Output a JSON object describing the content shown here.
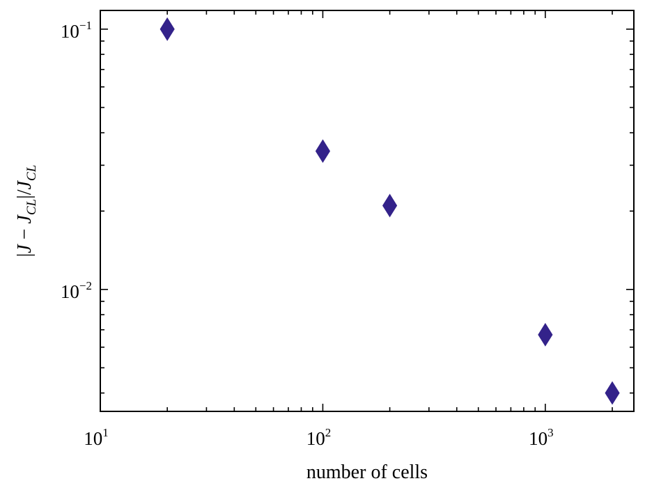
{
  "chart_data": {
    "type": "scatter",
    "title": "",
    "xlabel": "number of cells",
    "ylabel": "|J − J_CL|/J_CL",
    "ylabel_parts": {
      "abs_open": "|",
      "j": "J",
      "minus": " − ",
      "j2": "J",
      "sub1": "CL",
      "abs_close": "|/",
      "j3": "J",
      "sub2": "CL"
    },
    "xscale": "log",
    "yscale": "log",
    "xlim": [
      10,
      2500
    ],
    "ylim": [
      0.0034,
      0.118
    ],
    "grid": false,
    "legend": "none",
    "x_ticks": [
      {
        "value": 10,
        "base": "10",
        "exp": "1"
      },
      {
        "value": 100,
        "base": "10",
        "exp": "2"
      },
      {
        "value": 1000,
        "base": "10",
        "exp": "3"
      }
    ],
    "y_ticks": [
      {
        "value": 0.01,
        "base": "10",
        "exp": "−2"
      },
      {
        "value": 0.1,
        "base": "10",
        "exp": "−1"
      }
    ],
    "marker": "diamond",
    "marker_color": "#33228a",
    "series": [
      {
        "x": [
          20,
          100,
          200,
          1000,
          2000
        ],
        "y": [
          0.1,
          0.034,
          0.021,
          0.0067,
          0.004
        ]
      }
    ]
  }
}
